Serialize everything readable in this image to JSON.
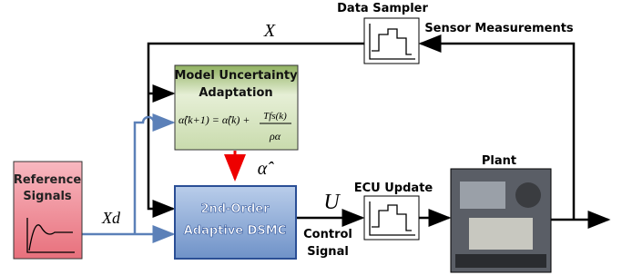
{
  "nodes": [
    {
      "label": [
        "Reference",
        "Signals"
      ]
    },
    {
      "label": [
        "Model Uncertainty",
        "Adaptation"
      ],
      "formula": {
        "lhs": "α̂(k+1) = α̂(k) +",
        "numerator": "Tfs(k)",
        "denominator": "ρα"
      }
    },
    {
      "label": [
        "2nd-Order",
        "Adaptive DSMC"
      ]
    },
    {
      "label": [
        "ECU Update"
      ]
    },
    {
      "label": [
        "Plant"
      ]
    },
    {
      "label": [
        "Data Sampler"
      ]
    }
  ],
  "edges": [
    {
      "label": "X"
    },
    {
      "label": "Xd"
    },
    {
      "label": "α̂"
    },
    {
      "label": "U"
    },
    {
      "label": [
        "Control",
        "Signal"
      ]
    },
    {
      "label": "Sensor Measurements"
    }
  ]
}
